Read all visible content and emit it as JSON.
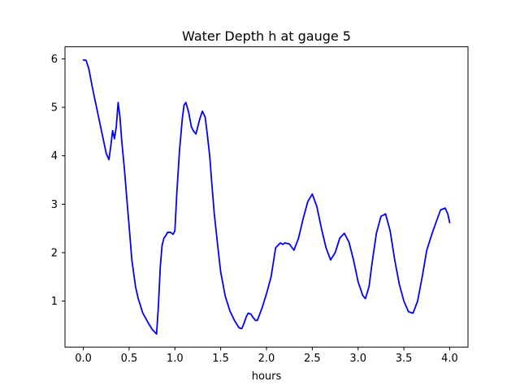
{
  "chart_data": {
    "type": "line",
    "title": "Water Depth h at gauge 5",
    "xlabel": "hours",
    "ylabel": "",
    "xlim": [
      -0.2,
      4.2
    ],
    "ylim": [
      0.05,
      6.25
    ],
    "xticks": [
      0.0,
      0.5,
      1.0,
      1.5,
      2.0,
      2.5,
      3.0,
      3.5,
      4.0
    ],
    "xtick_labels": [
      "0.0",
      "0.5",
      "1.0",
      "1.5",
      "2.0",
      "2.5",
      "3.0",
      "3.5",
      "4.0"
    ],
    "yticks": [
      1,
      2,
      3,
      4,
      5,
      6
    ],
    "ytick_labels": [
      "1",
      "2",
      "3",
      "4",
      "5",
      "6"
    ],
    "grid": false,
    "series": [
      {
        "name": "",
        "color": "#0000ff",
        "x": [
          0.0,
          0.03,
          0.06,
          0.1,
          0.15,
          0.2,
          0.25,
          0.28,
          0.3,
          0.32,
          0.34,
          0.36,
          0.38,
          0.4,
          0.42,
          0.45,
          0.48,
          0.5,
          0.53,
          0.57,
          0.6,
          0.65,
          0.7,
          0.75,
          0.8,
          0.82,
          0.84,
          0.86,
          0.88,
          0.9,
          0.92,
          0.95,
          0.98,
          1.0,
          1.02,
          1.05,
          1.08,
          1.1,
          1.12,
          1.15,
          1.18,
          1.2,
          1.23,
          1.27,
          1.3,
          1.33,
          1.35,
          1.38,
          1.4,
          1.43,
          1.47,
          1.5,
          1.55,
          1.6,
          1.65,
          1.7,
          1.73,
          1.75,
          1.78,
          1.8,
          1.83,
          1.85,
          1.88,
          1.9,
          1.95,
          2.0,
          2.05,
          2.1,
          2.15,
          2.18,
          2.2,
          2.25,
          2.28,
          2.3,
          2.35,
          2.4,
          2.45,
          2.5,
          2.55,
          2.6,
          2.65,
          2.7,
          2.75,
          2.8,
          2.85,
          2.9,
          2.95,
          3.0,
          3.05,
          3.08,
          3.12,
          3.15,
          3.2,
          3.25,
          3.3,
          3.35,
          3.4,
          3.45,
          3.5,
          3.55,
          3.6,
          3.65,
          3.7,
          3.75,
          3.8,
          3.85,
          3.9,
          3.95,
          3.98,
          4.0
        ],
        "y": [
          5.98,
          5.97,
          5.8,
          5.4,
          4.95,
          4.5,
          4.05,
          3.92,
          4.2,
          4.52,
          4.35,
          4.6,
          5.1,
          4.8,
          4.3,
          3.7,
          3.0,
          2.55,
          1.85,
          1.3,
          1.05,
          0.75,
          0.58,
          0.42,
          0.32,
          0.9,
          1.7,
          2.15,
          2.3,
          2.35,
          2.42,
          2.42,
          2.38,
          2.45,
          3.2,
          4.1,
          4.75,
          5.05,
          5.1,
          4.9,
          4.6,
          4.52,
          4.45,
          4.75,
          4.92,
          4.8,
          4.5,
          4.0,
          3.5,
          2.8,
          2.1,
          1.6,
          1.1,
          0.8,
          0.6,
          0.45,
          0.43,
          0.52,
          0.68,
          0.75,
          0.73,
          0.67,
          0.6,
          0.6,
          0.85,
          1.15,
          1.5,
          2.1,
          2.2,
          2.17,
          2.2,
          2.18,
          2.1,
          2.05,
          2.3,
          2.7,
          3.05,
          3.21,
          2.95,
          2.5,
          2.1,
          1.85,
          2.0,
          2.3,
          2.4,
          2.22,
          1.85,
          1.4,
          1.12,
          1.05,
          1.3,
          1.75,
          2.4,
          2.75,
          2.8,
          2.45,
          1.85,
          1.35,
          1.0,
          0.78,
          0.75,
          1.0,
          1.5,
          2.05,
          2.35,
          2.62,
          2.88,
          2.92,
          2.8,
          2.62
        ]
      }
    ]
  }
}
